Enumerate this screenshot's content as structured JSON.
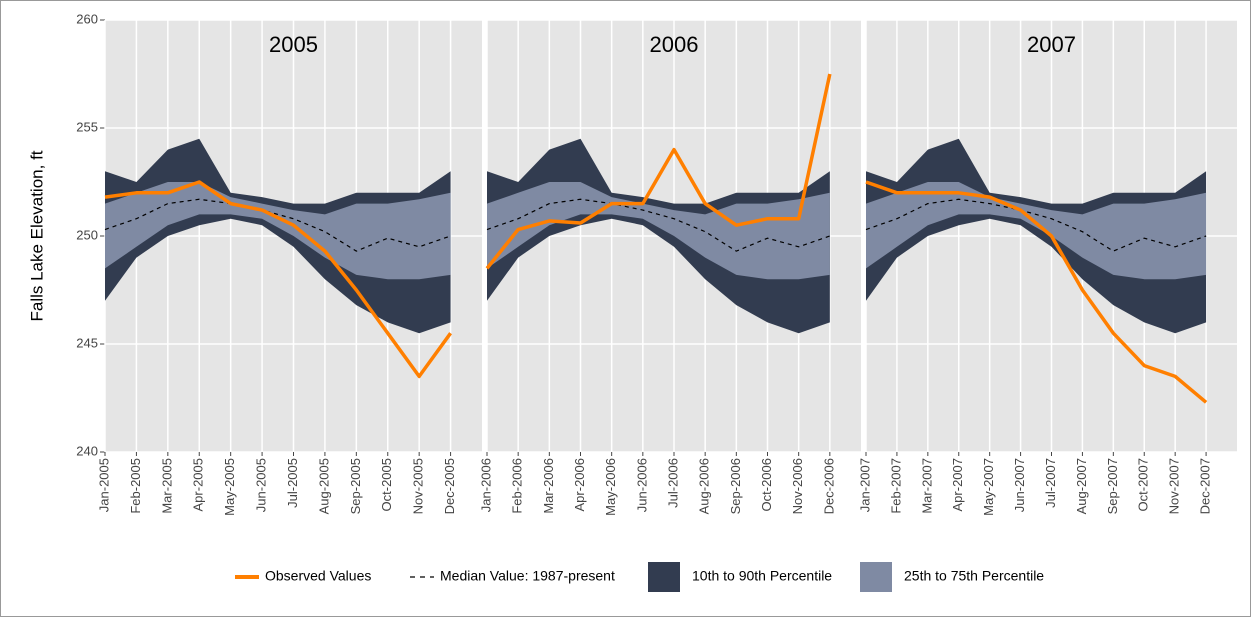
{
  "ylabel": "Falls Lake Elevation, ft",
  "ylim": [
    240,
    260
  ],
  "yticks": [
    240,
    245,
    250,
    255,
    260
  ],
  "grid": true,
  "series": [
    {
      "name": "Observed Values",
      "color": "#ff7f00",
      "kind": "line"
    },
    {
      "name": "Median Value: 1987-present",
      "color": "#000000",
      "kind": "dashed"
    },
    {
      "name": "10th to 90th Percentile",
      "color": "#323c50",
      "kind": "band"
    },
    {
      "name": "25th to 75th Percentile",
      "color": "#7f8aa3",
      "kind": "band"
    }
  ],
  "chart_data": [
    {
      "type": "line",
      "title": "2005",
      "x": [
        "Jan-2005",
        "Feb-2005",
        "Mar-2005",
        "Apr-2005",
        "May-2005",
        "Jun-2005",
        "Jul-2005",
        "Aug-2005",
        "Sep-2005",
        "Oct-2005",
        "Nov-2005",
        "Dec-2005"
      ],
      "series": [
        {
          "values": [
            251.8,
            252,
            252,
            252.5,
            251.5,
            251.2,
            250.5,
            249.3,
            247.5,
            245.5,
            243.5,
            245.5
          ]
        },
        {
          "values": [
            250.3,
            250.8,
            251.5,
            251.7,
            251.5,
            251.2,
            250.8,
            250.2,
            249.3,
            249.9,
            249.5,
            250
          ]
        },
        {
          "low": [
            247,
            249,
            250,
            250.5,
            250.8,
            250.5,
            249.5,
            248,
            246.8,
            246,
            245.5,
            246
          ],
          "high": [
            253,
            252.5,
            254,
            254.5,
            252,
            251.8,
            251.5,
            251.5,
            252,
            252,
            252,
            253
          ]
        },
        {
          "low": [
            248.5,
            249.5,
            250.5,
            251,
            251,
            250.8,
            250,
            249,
            248.2,
            248,
            248,
            248.2
          ],
          "high": [
            251.5,
            252,
            252.5,
            252.5,
            251.8,
            251.5,
            251.2,
            251,
            251.5,
            251.5,
            251.7,
            252
          ]
        }
      ]
    },
    {
      "type": "line",
      "title": "2006",
      "x": [
        "Jan-2006",
        "Feb-2006",
        "Mar-2006",
        "Apr-2006",
        "May-2006",
        "Jun-2006",
        "Jul-2006",
        "Aug-2006",
        "Sep-2006",
        "Oct-2006",
        "Nov-2006",
        "Dec-2006"
      ],
      "series": [
        {
          "values": [
            248.5,
            250.3,
            250.7,
            250.6,
            251.5,
            251.5,
            254,
            251.5,
            250.5,
            250.8,
            250.8,
            257.5
          ]
        },
        {
          "values": [
            250.3,
            250.8,
            251.5,
            251.7,
            251.5,
            251.2,
            250.8,
            250.2,
            249.3,
            249.9,
            249.5,
            250
          ]
        },
        {
          "low": [
            247,
            249,
            250,
            250.5,
            250.8,
            250.5,
            249.5,
            248,
            246.8,
            246,
            245.5,
            246
          ],
          "high": [
            253,
            252.5,
            254,
            254.5,
            252,
            251.8,
            251.5,
            251.5,
            252,
            252,
            252,
            253
          ]
        },
        {
          "low": [
            248.5,
            249.5,
            250.5,
            251,
            251,
            250.8,
            250,
            249,
            248.2,
            248,
            248,
            248.2
          ],
          "high": [
            251.5,
            252,
            252.5,
            252.5,
            251.8,
            251.5,
            251.2,
            251,
            251.5,
            251.5,
            251.7,
            252
          ]
        }
      ]
    },
    {
      "type": "line",
      "title": "2007",
      "x": [
        "Jan-2007",
        "Feb-2007",
        "Mar-2007",
        "Apr-2007",
        "May-2007",
        "Jun-2007",
        "Jul-2007",
        "Aug-2007",
        "Sep-2007",
        "Oct-2007",
        "Nov-2007",
        "Dec-2007"
      ],
      "series": [
        {
          "values": [
            252.5,
            252,
            252,
            252,
            251.8,
            251.2,
            250,
            247.5,
            245.5,
            244,
            243.5,
            242.3
          ]
        },
        {
          "values": [
            250.3,
            250.8,
            251.5,
            251.7,
            251.5,
            251.2,
            250.8,
            250.2,
            249.3,
            249.9,
            249.5,
            250
          ]
        },
        {
          "low": [
            247,
            249,
            250,
            250.5,
            250.8,
            250.5,
            249.5,
            248,
            246.8,
            246,
            245.5,
            246
          ],
          "high": [
            253,
            252.5,
            254,
            254.5,
            252,
            251.8,
            251.5,
            251.5,
            252,
            252,
            252,
            253
          ]
        },
        {
          "low": [
            248.5,
            249.5,
            250.5,
            251,
            251,
            250.8,
            250,
            249,
            248.2,
            248,
            248,
            248.2
          ],
          "high": [
            251.5,
            252,
            252.5,
            252.5,
            251.8,
            251.5,
            251.2,
            251,
            251.5,
            251.5,
            251.7,
            252
          ]
        }
      ]
    }
  ]
}
